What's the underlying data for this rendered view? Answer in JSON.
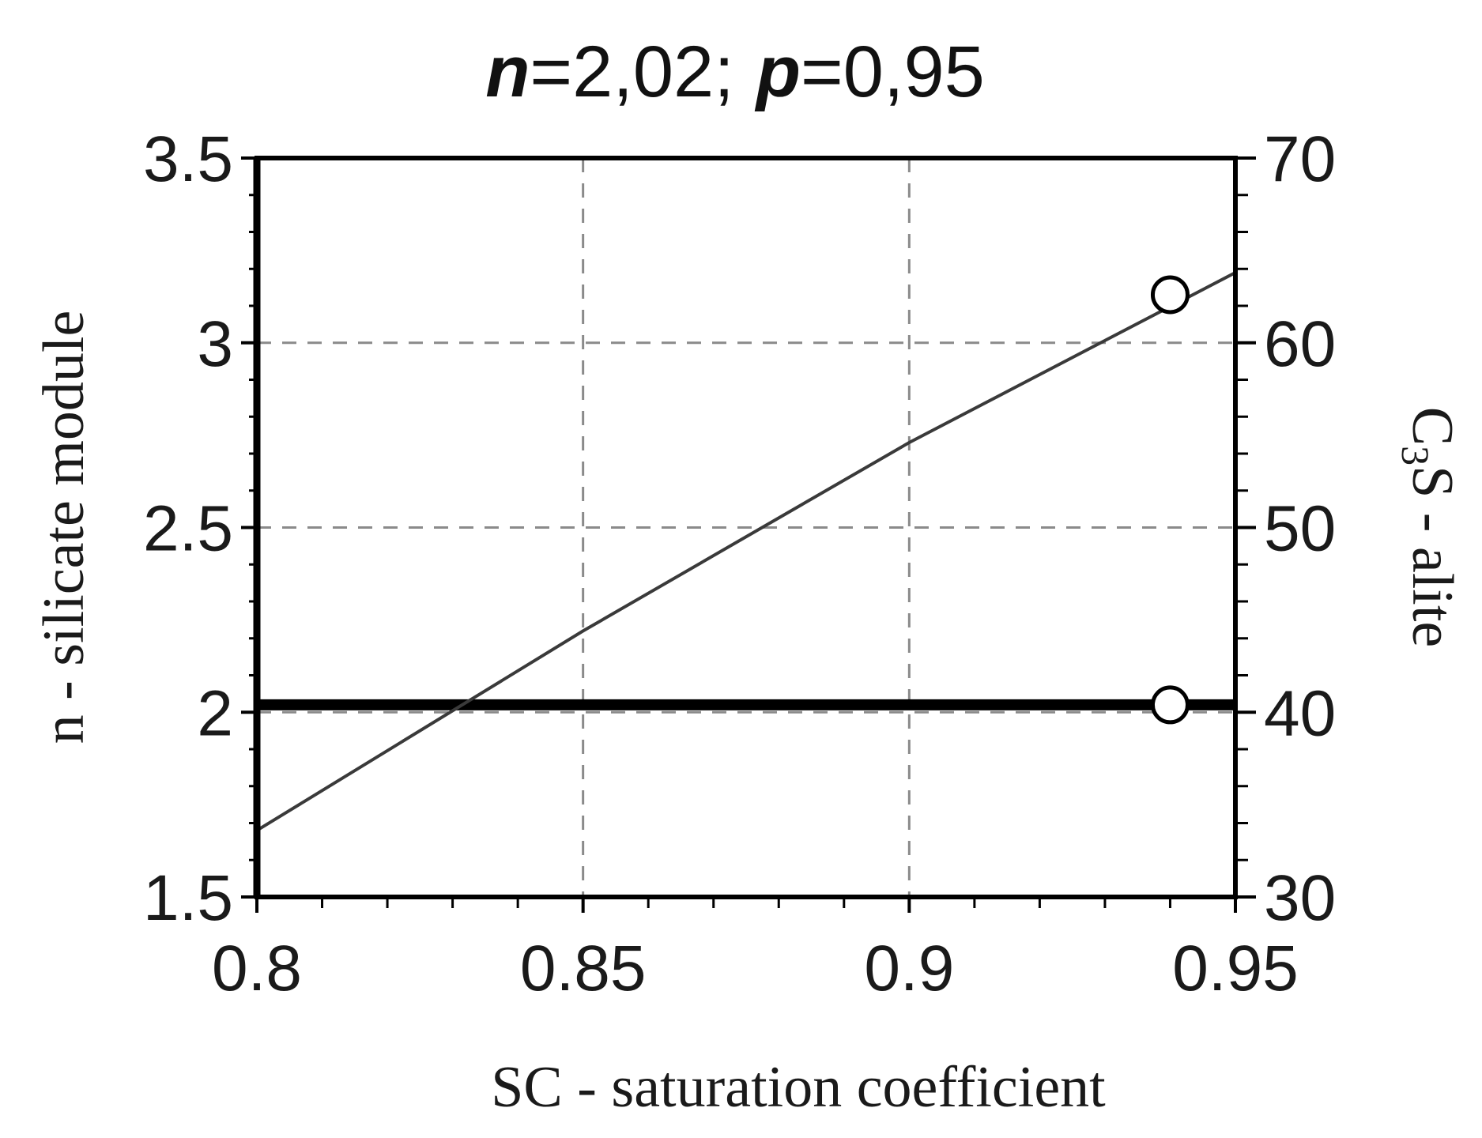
{
  "chart_data": {
    "type": "line",
    "title_parts": {
      "n_symbol": "n",
      "n_value": "=2,02;",
      "p_symbol": "p",
      "p_value": "=0,95"
    },
    "xlabel": "SC - saturation coefficient",
    "ylabel_left": "n - silicate module",
    "ylabel_right_parts": {
      "c": "C",
      "sub": "3",
      "rest": "S - alite"
    },
    "xlim": [
      0.8,
      0.95
    ],
    "ylim_left": [
      1.5,
      3.5
    ],
    "ylim_right": [
      30,
      70
    ],
    "x_ticks": [
      0.8,
      0.85,
      0.9,
      0.95
    ],
    "x_tick_labels": [
      "0.8",
      "0.85",
      "0.9",
      "0.95"
    ],
    "y_left_ticks": [
      1.5,
      2,
      2.5,
      3,
      3.5
    ],
    "y_left_tick_labels": [
      "1.5",
      "2",
      "2.5",
      "3",
      "3.5"
    ],
    "y_right_ticks": [
      30,
      40,
      50,
      60,
      70
    ],
    "y_right_tick_labels": [
      "30",
      "40",
      "50",
      "60",
      "70"
    ],
    "grid": true,
    "series": [
      {
        "axis": "left",
        "style": "thick",
        "x": [
          0.8,
          0.95
        ],
        "y": [
          2.02,
          2.02
        ],
        "marker_x": 0.94,
        "marker_y": 2.02,
        "color": "#000000"
      },
      {
        "axis": "right",
        "style": "thin",
        "x": [
          0.8,
          0.85,
          0.9,
          0.95
        ],
        "y": [
          33.6,
          44.4,
          54.6,
          63.8
        ],
        "marker_x": 0.94,
        "marker_y": 62.6,
        "color": "#3a3a3a"
      }
    ]
  }
}
